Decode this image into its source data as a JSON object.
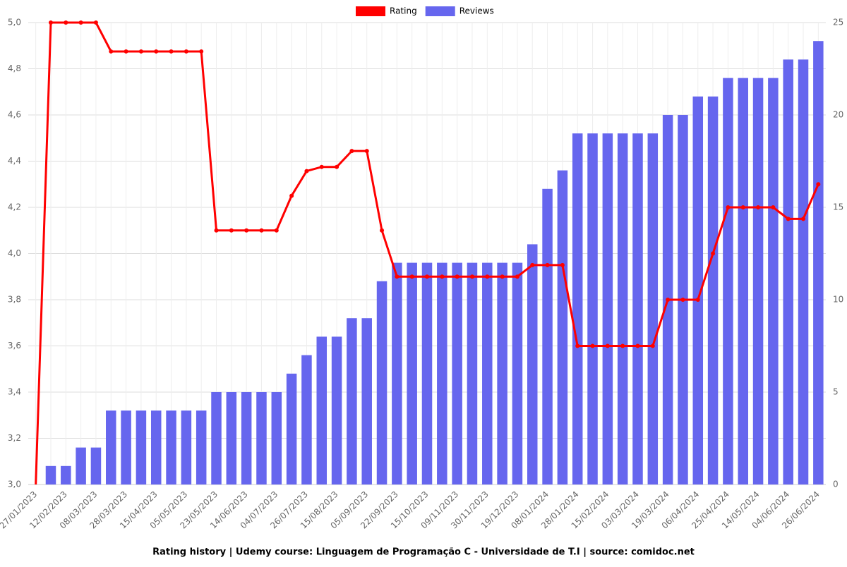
{
  "chart_data": {
    "type": "bar-line",
    "title": "Rating history | Udemy course: Linguagem de Programação C - Universidade de T.I | source: comidoc.net",
    "categories": [
      "27/01/2023",
      null,
      "12/02/2023",
      null,
      "08/03/2023",
      null,
      "28/03/2023",
      null,
      "15/04/2023",
      null,
      "05/05/2023",
      null,
      "23/05/2023",
      null,
      "14/06/2023",
      null,
      "04/07/2023",
      null,
      "26/07/2023",
      null,
      "15/08/2023",
      null,
      "05/09/2023",
      null,
      "22/09/2023",
      null,
      "15/10/2023",
      null,
      "09/11/2023",
      null,
      "30/11/2023",
      null,
      "19/12/2023",
      null,
      "08/01/2024",
      null,
      "28/01/2024",
      null,
      "15/02/2024",
      null,
      "03/03/2024",
      null,
      "19/03/2024",
      null,
      "06/04/2024",
      null,
      "25/04/2024",
      null,
      "14/05/2024",
      null,
      "04/06/2024",
      null,
      "26/06/2024"
    ],
    "series": [
      {
        "name": "Rating",
        "color": "#ff0000",
        "type": "line",
        "values": [
          3.0,
          5.0,
          5.0,
          5.0,
          5.0,
          4.875,
          4.875,
          4.875,
          4.875,
          4.875,
          4.875,
          4.875,
          4.1,
          4.1,
          4.1,
          4.1,
          4.1,
          4.25,
          4.357,
          4.375,
          4.375,
          4.444,
          4.444,
          4.1,
          3.9,
          3.9,
          3.9,
          3.9,
          3.9,
          3.9,
          3.9,
          3.9,
          3.9,
          3.95,
          3.95,
          3.95,
          3.6,
          3.6,
          3.6,
          3.6,
          3.6,
          3.6,
          3.8,
          3.8,
          3.8,
          4.0,
          4.2,
          4.2,
          4.2,
          4.2,
          4.15,
          4.15,
          4.3
        ]
      },
      {
        "name": "Reviews",
        "color": "#6666ee",
        "type": "bar",
        "axis": "y2",
        "values": [
          0,
          1,
          1,
          2,
          2,
          4,
          4,
          4,
          4,
          4,
          4,
          4,
          5,
          5,
          5,
          5,
          5,
          6,
          7,
          8,
          8,
          9,
          9,
          11,
          12,
          12,
          12,
          12,
          12,
          12,
          12,
          12,
          12,
          13,
          16,
          17,
          19,
          19,
          19,
          19,
          19,
          19,
          20,
          20,
          21,
          21,
          22,
          22,
          22,
          22,
          23,
          23,
          24
        ]
      }
    ],
    "ylim": [
      3.0,
      5.0
    ],
    "yticks": [
      {
        "value": 3.0,
        "label": "3,0"
      },
      {
        "value": 3.2,
        "label": "3,2"
      },
      {
        "value": 3.4,
        "label": "3,4"
      },
      {
        "value": 3.6,
        "label": "3,6"
      },
      {
        "value": 3.8,
        "label": "3,8"
      },
      {
        "value": 4.0,
        "label": "4,0"
      },
      {
        "value": 4.2,
        "label": "4,2"
      },
      {
        "value": 4.4,
        "label": "4,4"
      },
      {
        "value": 4.6,
        "label": "4,6"
      },
      {
        "value": 4.8,
        "label": "4,8"
      },
      {
        "value": 5.0,
        "label": "5,0"
      }
    ],
    "y2lim": [
      0,
      25
    ],
    "y2ticks": [
      0,
      5,
      10,
      15,
      20,
      25
    ],
    "grid": true
  }
}
